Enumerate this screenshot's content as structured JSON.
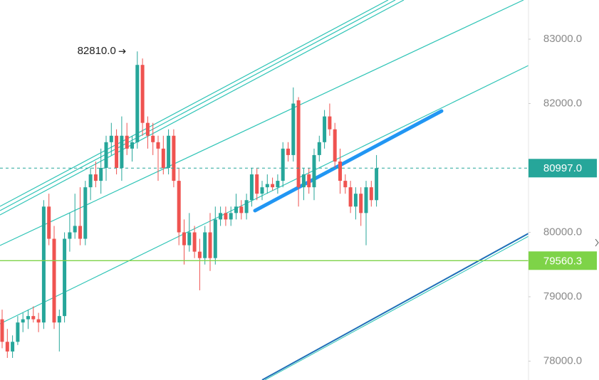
{
  "chart_data": {
    "type": "candlestick",
    "open": [
      78650,
      78300,
      78150,
      78300,
      78600,
      78650,
      78700,
      78650,
      78600,
      80400,
      79900,
      78600,
      78700,
      79900,
      80000,
      80100,
      79900,
      80700,
      80900,
      80800,
      81000,
      81400,
      81500,
      81000,
      81500,
      81300,
      81400,
      82600,
      81700,
      81500,
      81400,
      81300,
      81000,
      81500,
      80800,
      80000,
      79800,
      80000,
      79700,
      79600,
      80000,
      79600,
      80200,
      80300,
      80200,
      80300,
      80400,
      80300,
      80500,
      80900,
      80600,
      80700,
      80750,
      80700,
      80800,
      81300,
      81200,
      82050,
      80700,
      80900,
      80700,
      81200,
      81400,
      81800,
      81600,
      81100,
      80800,
      80700,
      80400,
      80600,
      80300,
      80700,
      80500
    ],
    "high": [
      78800,
      78500,
      78400,
      78700,
      78750,
      78800,
      78850,
      78750,
      80500,
      80600,
      80100,
      78800,
      80000,
      80300,
      80600,
      80700,
      80800,
      81000,
      81100,
      81300,
      81500,
      81700,
      81600,
      81800,
      81700,
      81500,
      82810,
      82700,
      81800,
      81700,
      81500,
      81500,
      81600,
      81600,
      81000,
      80200,
      80300,
      80100,
      79900,
      80100,
      80300,
      80400,
      80400,
      80400,
      80400,
      80600,
      80500,
      80600,
      81000,
      81000,
      80800,
      80900,
      80850,
      80900,
      81400,
      81400,
      82250,
      82100,
      81000,
      81000,
      81300,
      81500,
      81900,
      82000,
      81700,
      81300,
      80900,
      80800,
      80700,
      80700,
      80800,
      80800,
      81200
    ],
    "low": [
      78200,
      78050,
      78050,
      78250,
      78450,
      78500,
      78600,
      78450,
      78500,
      79800,
      78500,
      78150,
      78600,
      79700,
      79900,
      79800,
      79800,
      80500,
      80700,
      80600,
      80800,
      81200,
      80900,
      80800,
      81200,
      81100,
      81300,
      81500,
      81300,
      81200,
      80800,
      80900,
      80900,
      80700,
      79800,
      79500,
      79700,
      79600,
      79100,
      79500,
      79400,
      79500,
      80100,
      80100,
      80100,
      80200,
      80200,
      80200,
      80400,
      80500,
      80500,
      80600,
      80650,
      80600,
      80700,
      81100,
      81100,
      80400,
      80500,
      80600,
      80500,
      81100,
      81300,
      81500,
      81000,
      80600,
      80600,
      80300,
      80200,
      80100,
      79800,
      80400,
      80400
    ],
    "close": [
      78300,
      78150,
      78300,
      78600,
      78650,
      78700,
      78650,
      78600,
      80400,
      79900,
      78600,
      78700,
      79900,
      80000,
      80100,
      79900,
      80700,
      80900,
      80800,
      81000,
      81400,
      81500,
      81000,
      81500,
      81300,
      81400,
      82600,
      81700,
      81500,
      81400,
      81300,
      81000,
      81500,
      80800,
      80000,
      79800,
      80000,
      79700,
      79600,
      80000,
      79600,
      80200,
      80300,
      80200,
      80300,
      80400,
      80300,
      80500,
      80900,
      80600,
      80700,
      80750,
      80700,
      80800,
      81300,
      81200,
      82000,
      80700,
      80900,
      80700,
      81200,
      81400,
      81800,
      81600,
      81100,
      80800,
      80700,
      80400,
      80600,
      80300,
      80700,
      80500,
      80997
    ],
    "up_color": "#26a69a",
    "down_color": "#ef5350",
    "ylim": [
      77707,
      83608
    ],
    "yticks": [
      {
        "value": 78000,
        "label": "78000.0"
      },
      {
        "value": 79000,
        "label": "79000.0"
      },
      {
        "value": 80000,
        "label": "80000.0"
      },
      {
        "value": 82000,
        "label": "82000.0"
      },
      {
        "value": 83000,
        "label": "83000.0"
      }
    ],
    "high_marker": {
      "value": 82810,
      "label": "82810.0"
    },
    "last_price": {
      "value": 80997,
      "label": "80997.0",
      "color": "#26a69a"
    },
    "price_line": {
      "value": 79560.3,
      "label": "79560.3",
      "color": "#7ed348"
    }
  }
}
